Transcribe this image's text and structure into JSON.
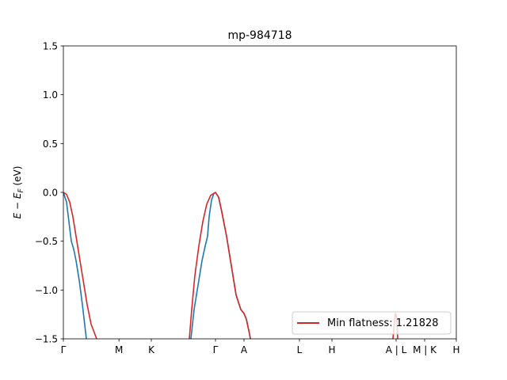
{
  "chart_data": {
    "type": "line",
    "title": "mp-984718",
    "ylabel": "E − E_F (eV)",
    "ylabel_main": "E − E",
    "ylabel_sub": "F",
    "ylabel_unit": " (eV)",
    "ylim": [
      -1.5,
      1.5
    ],
    "xlim": [
      0,
      1
    ],
    "y_ticks": [
      -1.5,
      -1.0,
      -0.5,
      0.0,
      0.5,
      1.0,
      1.5
    ],
    "y_tick_labels": [
      "−1.5",
      "−1.0",
      "−0.5",
      "0.0",
      "0.5",
      "1.0",
      "1.5"
    ],
    "x_ticks": [
      {
        "label": "Γ",
        "x": 0.0
      },
      {
        "label": "M",
        "x": 0.1415
      },
      {
        "label": "K",
        "x": 0.2238
      },
      {
        "label": "Γ",
        "x": 0.3871
      },
      {
        "label": "A",
        "x": 0.4597
      },
      {
        "label": "L",
        "x": 0.6008
      },
      {
        "label": "H",
        "x": 0.6835
      },
      {
        "label": "A | L",
        "x": 0.8468
      },
      {
        "label": "M | K",
        "x": 0.9194
      },
      {
        "label": "H",
        "x": 1.0
      }
    ],
    "grid": false,
    "legend_position": "lower right",
    "series": [
      {
        "color": "#1f77b4",
        "segments": [
          [
            [
              0.0,
              0.0
            ],
            [
              0.0081,
              -0.1
            ],
            [
              0.0141,
              -0.3
            ],
            [
              0.0202,
              -0.5
            ],
            [
              0.0262,
              -0.58
            ],
            [
              0.0323,
              -0.7
            ],
            [
              0.0403,
              -0.9
            ],
            [
              0.0484,
              -1.15
            ],
            [
              0.0585,
              -1.5
            ]
          ],
          [
            [
              0.3246,
              -1.5
            ],
            [
              0.3327,
              -1.2
            ],
            [
              0.3427,
              -0.95
            ],
            [
              0.3528,
              -0.7
            ],
            [
              0.3609,
              -0.55
            ],
            [
              0.3669,
              -0.45
            ],
            [
              0.371,
              -0.25
            ],
            [
              0.377,
              -0.08
            ],
            [
              0.3831,
              -0.01
            ],
            [
              0.3871,
              0.0
            ],
            [
              0.3952,
              -0.05
            ],
            [
              0.4032,
              -0.2
            ],
            [
              0.4153,
              -0.45
            ],
            [
              0.4274,
              -0.75
            ],
            [
              0.4395,
              -1.05
            ],
            [
              0.4516,
              -1.2
            ],
            [
              0.4597,
              -1.24
            ],
            [
              0.4657,
              -1.3
            ],
            [
              0.4738,
              -1.45
            ],
            [
              0.4758,
              -1.5
            ]
          ]
        ]
      },
      {
        "name": "Min flatness: 1.21828",
        "color": "#d62728",
        "segments": [
          [
            [
              0.0,
              0.0
            ],
            [
              0.0081,
              -0.02
            ],
            [
              0.0161,
              -0.1
            ],
            [
              0.0242,
              -0.25
            ],
            [
              0.0323,
              -0.45
            ],
            [
              0.0403,
              -0.65
            ],
            [
              0.0504,
              -0.9
            ],
            [
              0.0605,
              -1.15
            ],
            [
              0.0706,
              -1.35
            ],
            [
              0.0847,
              -1.5
            ]
          ],
          [
            [
              0.3206,
              -1.5
            ],
            [
              0.3266,
              -1.2
            ],
            [
              0.3347,
              -0.85
            ],
            [
              0.3448,
              -0.55
            ],
            [
              0.3548,
              -0.3
            ],
            [
              0.3649,
              -0.12
            ],
            [
              0.375,
              -0.03
            ],
            [
              0.3871,
              0.0
            ],
            [
              0.3952,
              -0.05
            ],
            [
              0.4032,
              -0.2
            ],
            [
              0.4153,
              -0.45
            ],
            [
              0.4274,
              -0.75
            ],
            [
              0.4395,
              -1.05
            ],
            [
              0.4516,
              -1.2
            ],
            [
              0.4597,
              -1.24
            ],
            [
              0.4657,
              -1.3
            ],
            [
              0.4738,
              -1.45
            ],
            [
              0.4758,
              -1.5
            ]
          ],
          [
            [
              0.8387,
              -1.5
            ],
            [
              0.8427,
              -1.32
            ],
            [
              0.8448,
              -1.24
            ],
            [
              0.8468,
              -1.25
            ],
            [
              0.8488,
              -1.3
            ],
            [
              0.8508,
              -1.5
            ]
          ]
        ]
      }
    ]
  }
}
